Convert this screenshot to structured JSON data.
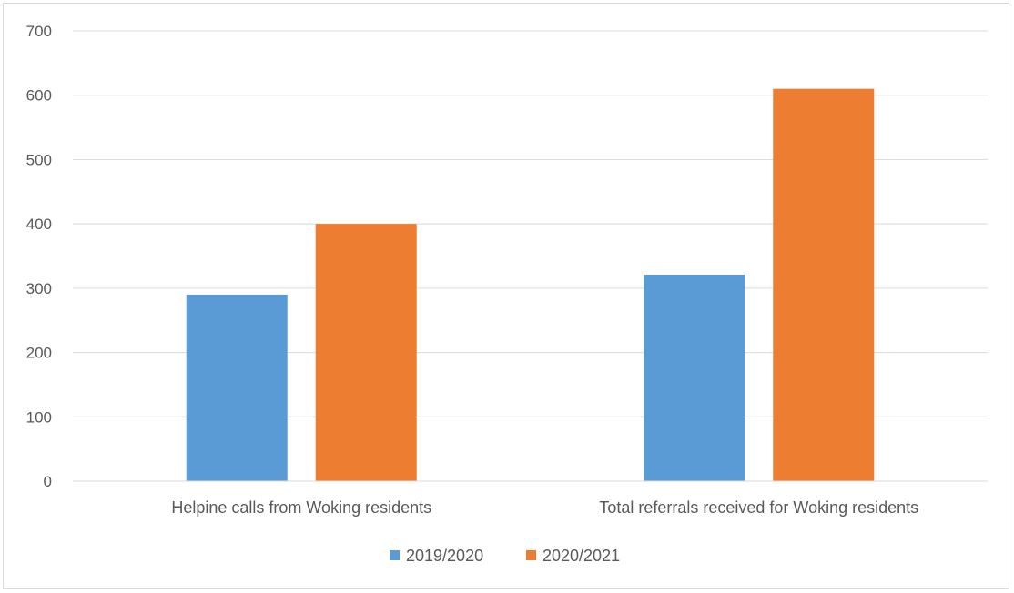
{
  "chart_data": {
    "type": "bar",
    "categories": [
      "Helpine calls from Woking residents",
      "Total referrals received for Woking residents"
    ],
    "series": [
      {
        "name": "2019/2020",
        "color": "#5b9bd5",
        "values": [
          290,
          321
        ]
      },
      {
        "name": "2020/2021",
        "color": "#ed7d31",
        "values": [
          400,
          610
        ]
      }
    ],
    "yticks": [
      "0",
      "100",
      "200",
      "300",
      "400",
      "500",
      "600",
      "700"
    ],
    "ylim": [
      0,
      700
    ],
    "grid": true,
    "legend_position": "bottom",
    "title": "",
    "xlabel": "",
    "ylabel": ""
  }
}
